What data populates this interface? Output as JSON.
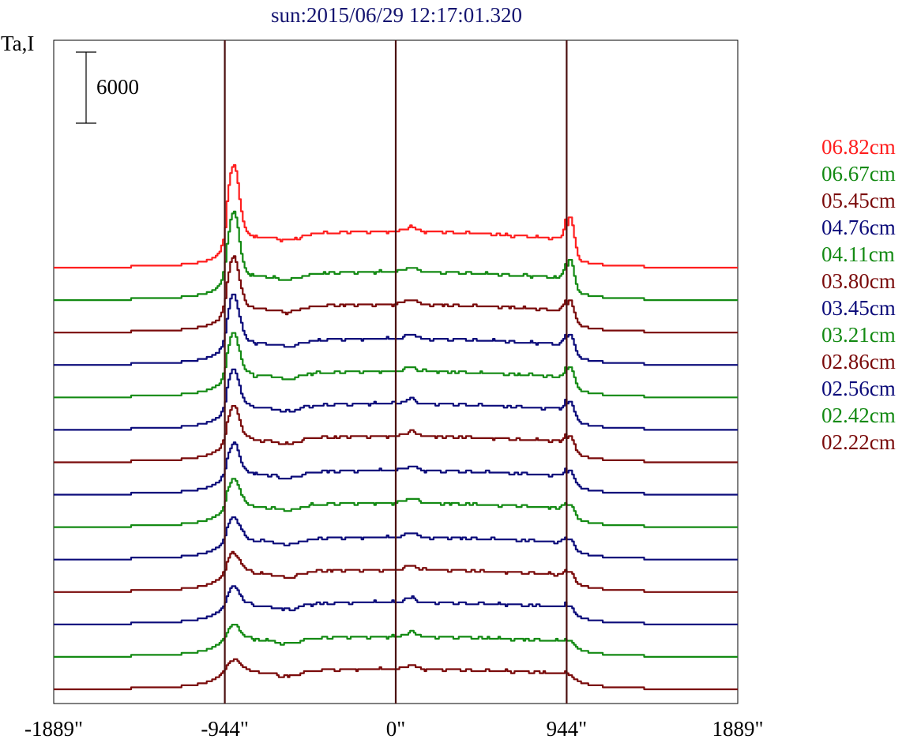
{
  "chart_data": {
    "type": "line",
    "title": "sun:2015/06/29 12:17:01.320",
    "ylabel": "Ta,I",
    "scale_bar_label": "6000",
    "x_ticks": [
      {
        "value": -1889,
        "label": "-1889\""
      },
      {
        "value": -944,
        "label": "-944\""
      },
      {
        "value": 0,
        "label": "0\""
      },
      {
        "value": 944,
        "label": "944\""
      },
      {
        "value": 1889,
        "label": "1889\""
      }
    ],
    "xlim": [
      -1889,
      1889
    ],
    "vertical_lines": [
      -944,
      0,
      944
    ],
    "grid": false,
    "legend": "right",
    "colors": {
      "red": "#ff1e1e",
      "green": "#138a13",
      "maroon": "#7a0a0a",
      "blue": "#0b0b7a",
      "vline": "#4a0f0f",
      "axis": "#000000"
    },
    "legend_entries": [
      {
        "label": "06.82cm",
        "color": "red"
      },
      {
        "label": "06.67cm",
        "color": "green"
      },
      {
        "label": "05.45cm",
        "color": "maroon"
      },
      {
        "label": "04.76cm",
        "color": "blue"
      },
      {
        "label": "04.11cm",
        "color": "green"
      },
      {
        "label": "03.80cm",
        "color": "maroon"
      },
      {
        "label": "03.45cm",
        "color": "blue"
      },
      {
        "label": "03.21cm",
        "color": "green"
      },
      {
        "label": "02.86cm",
        "color": "maroon"
      },
      {
        "label": "02.56cm",
        "color": "blue"
      },
      {
        "label": "02.42cm",
        "color": "green"
      },
      {
        "label": "02.22cm",
        "color": "maroon"
      }
    ],
    "stacked_series": [
      {
        "color": "red",
        "limb_peak": 34,
        "right_peak": 20,
        "plateau": 18
      },
      {
        "color": "green",
        "limb_peak": 30,
        "right_peak": 15,
        "plateau": 14
      },
      {
        "color": "maroon",
        "limb_peak": 24,
        "right_peak": 11,
        "plateau": 14
      },
      {
        "color": "blue",
        "limb_peak": 22,
        "right_peak": 10,
        "plateau": 13
      },
      {
        "color": "green",
        "limb_peak": 19,
        "right_peak": 10,
        "plateau": 13
      },
      {
        "color": "blue",
        "limb_peak": 17,
        "right_peak": 9,
        "plateau": 13
      },
      {
        "color": "maroon",
        "limb_peak": 15,
        "right_peak": 8,
        "plateau": 13
      },
      {
        "color": "blue",
        "limb_peak": 13,
        "right_peak": 7,
        "plateau": 12
      },
      {
        "color": "green",
        "limb_peak": 12,
        "right_peak": 6,
        "plateau": 12
      },
      {
        "color": "blue",
        "limb_peak": 10,
        "right_peak": 5,
        "plateau": 11
      },
      {
        "color": "maroon",
        "limb_peak": 8,
        "right_peak": 5,
        "plateau": 11
      },
      {
        "color": "blue",
        "limb_peak": 7,
        "right_peak": 4,
        "plateau": 11
      },
      {
        "color": "green",
        "limb_peak": 5,
        "right_peak": 3,
        "plateau": 10
      },
      {
        "color": "maroon",
        "limb_peak": 4,
        "right_peak": 2,
        "plateau": 10
      }
    ]
  }
}
